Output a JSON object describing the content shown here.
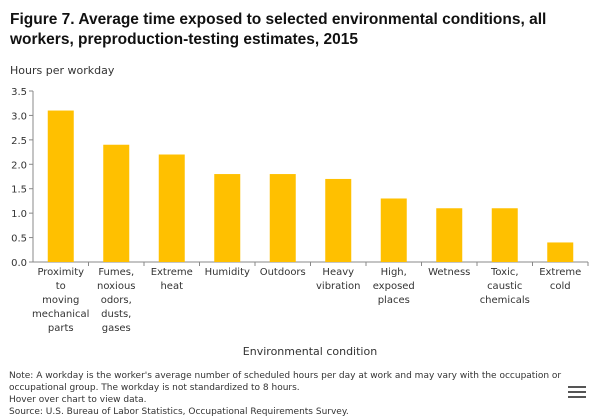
{
  "chart_data": {
    "type": "bar",
    "title_line1": "Figure 7. Average time exposed to selected environmental conditions, all",
    "title_line2": "workers, preproduction-testing estimates, 2015",
    "ylabel": "Hours per workday",
    "xlabel": "Environmental condition",
    "ylim": [
      0,
      3.5
    ],
    "yticks": [
      "0.0",
      "0.5",
      "1.0",
      "1.5",
      "2.0",
      "2.5",
      "3.0",
      "3.5"
    ],
    "categories": [
      [
        "Proximity",
        "to",
        "moving",
        "mechanical",
        "parts"
      ],
      [
        "Fumes,",
        "noxious",
        "odors,",
        "dusts,",
        "gases"
      ],
      [
        "Extreme",
        "heat"
      ],
      [
        "Humidity"
      ],
      [
        "Outdoors"
      ],
      [
        "Heavy",
        "vibration"
      ],
      [
        "High,",
        "exposed",
        "places"
      ],
      [
        "Wetness"
      ],
      [
        "Toxic,",
        "caustic",
        "chemicals"
      ],
      [
        "Extreme",
        "cold"
      ]
    ],
    "values": [
      3.1,
      2.4,
      2.2,
      1.8,
      1.8,
      1.7,
      1.3,
      1.1,
      1.1,
      0.4
    ],
    "grid": false,
    "legend": "none",
    "bar_color": "#ffc000"
  },
  "notes": {
    "note_line1": "Note: A workday is the worker's average number of scheduled hours per day at work and may vary with the occupation or",
    "note_line2": "occupational group. The workday is not standardized to 8 hours.",
    "hover": "Hover over chart to view data.",
    "source": "Source: U.S. Bureau of Labor Statistics, Occupational Requirements Survey."
  },
  "menu_icon": "hamburger-menu-icon"
}
